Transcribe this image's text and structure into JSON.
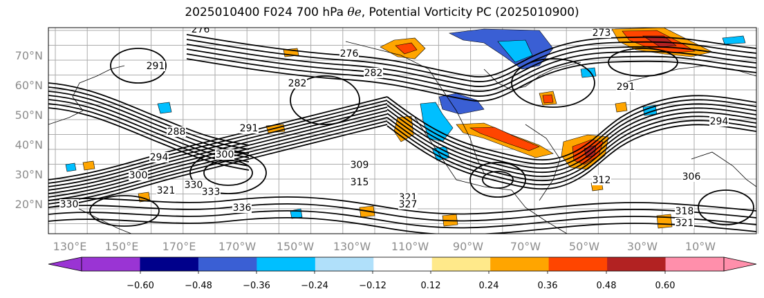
{
  "figure": {
    "title_prefix": "2025010400 F024 700 hPa ",
    "title_symbol": "θe",
    "title_suffix": ", Potential Vorticity PC (2025010900)"
  },
  "map": {
    "lon_labels": [
      "130°E",
      "150°E",
      "170°E",
      "170°W",
      "150°W",
      "130°W",
      "110°W",
      "90°W",
      "70°W",
      "50°W",
      "30°W",
      "10°W"
    ],
    "lat_labels": [
      "70°N",
      "60°N",
      "50°N",
      "40°N",
      "30°N",
      "20°N"
    ],
    "contour_labels": [
      "276",
      "273",
      "276",
      "282",
      "282",
      "291",
      "288",
      "294",
      "300",
      "300",
      "309",
      "315",
      "321",
      "327",
      "330",
      "333",
      "336",
      "312",
      "318",
      "321",
      "291",
      "294",
      "306",
      "321",
      "330",
      "291"
    ],
    "field": "Potential Vorticity PC",
    "contour_field": "700 hPa theta-e"
  },
  "colorbar": {
    "tick_labels": [
      "−0.60",
      "−0.48",
      "−0.36",
      "−0.24",
      "−0.12",
      "0.12",
      "0.24",
      "0.36",
      "0.48",
      "0.60"
    ],
    "colors": [
      "#9a34d4",
      "#00008b",
      "#3a5fd4",
      "#00bfff",
      "#b0e0fa",
      "#ffffff",
      "#ffe98a",
      "#ffa500",
      "#ff4500",
      "#b22222",
      "#ff8fab"
    ],
    "under_color": "#9a34d4",
    "over_color": "#ff8fab",
    "extend": "both"
  },
  "colors": {
    "contour": "#000000",
    "coast": "#000000",
    "grid": "#888888",
    "axis_label": "#8c8c8c"
  }
}
